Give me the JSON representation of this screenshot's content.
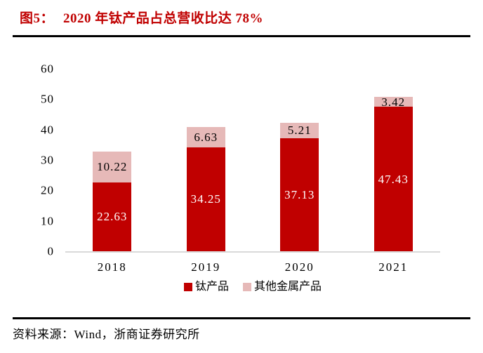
{
  "figure": {
    "label": "图5：",
    "title": "2020 年钛产品占总营收比达 78%"
  },
  "source_text": "资料来源：Wind，浙商证券研究所",
  "colors": {
    "title_red": "#c00000",
    "bar_red": "#c00000",
    "bar_pink": "#e6b9b8",
    "baseline_gray": "#d9d9d9",
    "rule_black": "#000000"
  },
  "chart_data": {
    "type": "bar",
    "stacked": true,
    "categories": [
      "2018",
      "2019",
      "2020",
      "2021"
    ],
    "series": [
      {
        "name": "钛产品",
        "color": "#c00000",
        "label_color": "#ffffff",
        "values": [
          22.63,
          34.25,
          37.13,
          47.43
        ]
      },
      {
        "name": "其他金属产品",
        "color": "#e6b9b8",
        "label_color": "#000000",
        "values": [
          10.22,
          6.63,
          5.21,
          3.42
        ]
      }
    ],
    "ylim": [
      0,
      60
    ],
    "yticks": [
      0,
      10,
      20,
      30,
      40,
      50,
      60
    ],
    "grid": false,
    "axis_line": "x-only",
    "legend_position": "bottom",
    "data_labels": true
  }
}
